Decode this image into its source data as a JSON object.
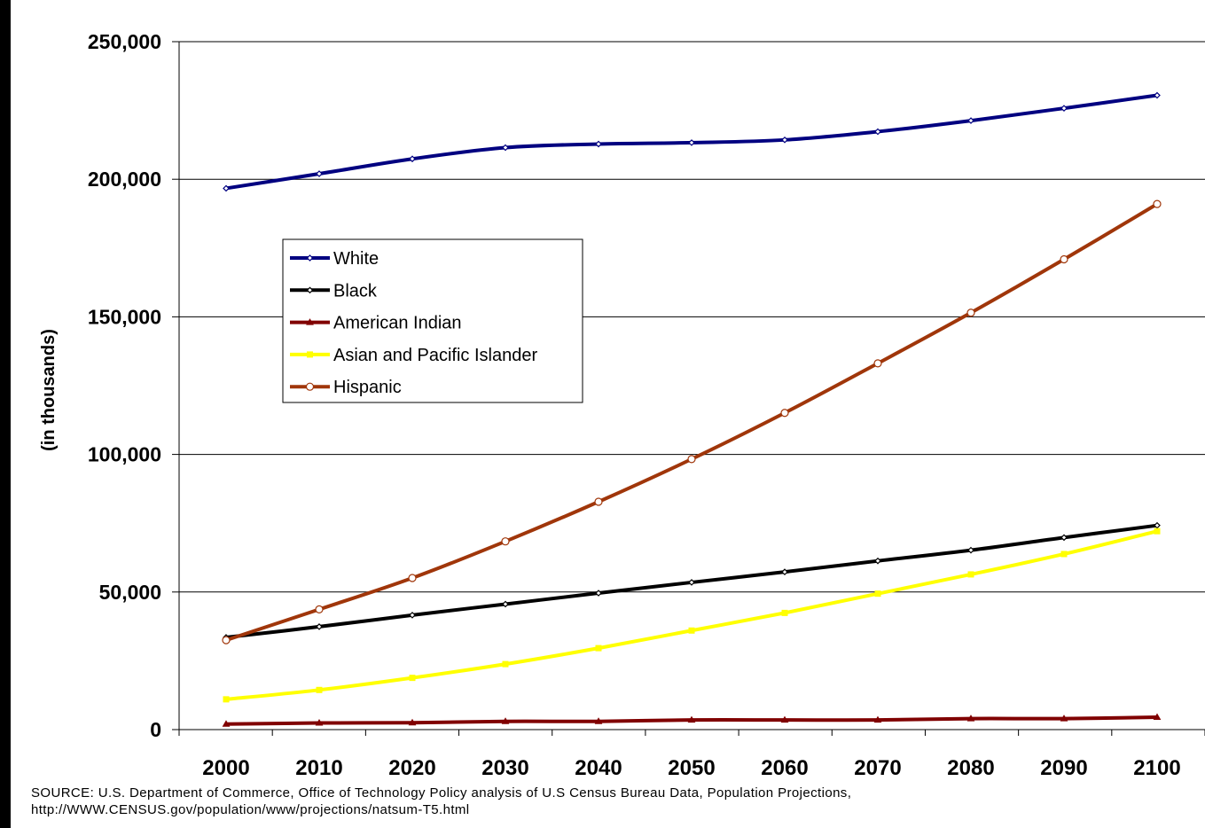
{
  "chart_data": {
    "type": "line",
    "title": "",
    "xlabel": "",
    "ylabel": "(in thousands)",
    "x": [
      2000,
      2010,
      2020,
      2030,
      2040,
      2050,
      2060,
      2070,
      2080,
      2090,
      2100
    ],
    "x_tick_labels": [
      "2000",
      "2010",
      "2020",
      "2030",
      "2040",
      "2050",
      "2060",
      "2070",
      "2080",
      "2090",
      "2100"
    ],
    "ylim": [
      0,
      250000
    ],
    "y_ticks": [
      0,
      50000,
      100000,
      150000,
      200000,
      250000
    ],
    "y_tick_labels": [
      "0",
      "50,000",
      "100,000",
      "150,000",
      "200,000",
      "250,000"
    ],
    "grid": "horizontal",
    "legend_position": "upper-left-inside",
    "series": [
      {
        "name": "White",
        "color": "#000080",
        "marker": "diamond",
        "values": [
          196700,
          202000,
          207400,
          211500,
          212800,
          213300,
          214300,
          217300,
          221300,
          225800,
          230500
        ]
      },
      {
        "name": "Black",
        "color": "#000000",
        "marker": "diamond",
        "values": [
          33500,
          37400,
          41600,
          45600,
          49600,
          53500,
          57300,
          61300,
          65200,
          69800,
          74200
        ]
      },
      {
        "name": "American Indian",
        "color": "#800000",
        "marker": "triangle",
        "values": [
          2000,
          2400,
          2500,
          3000,
          3000,
          3500,
          3500,
          3500,
          4000,
          4000,
          4500
        ]
      },
      {
        "name": "Asian and Pacific Islander",
        "color": "#FFFF00",
        "marker": "square",
        "values": [
          11000,
          14400,
          18800,
          23800,
          29600,
          36000,
          42400,
          49400,
          56400,
          63800,
          72100
        ]
      },
      {
        "name": "Hispanic",
        "color": "#A0360A",
        "marker": "circle",
        "values": [
          32500,
          43700,
          55100,
          68400,
          82800,
          98300,
          115100,
          133100,
          151500,
          170900,
          191000
        ]
      }
    ],
    "source_lines": [
      "SOURCE: U.S. Department of Commerce, Office of Technology Policy analysis of U.S Census Bureau Data, Population Projections,",
      "http://WWW.CENSUS.gov/population/www/projections/natsum-T5.html"
    ]
  }
}
